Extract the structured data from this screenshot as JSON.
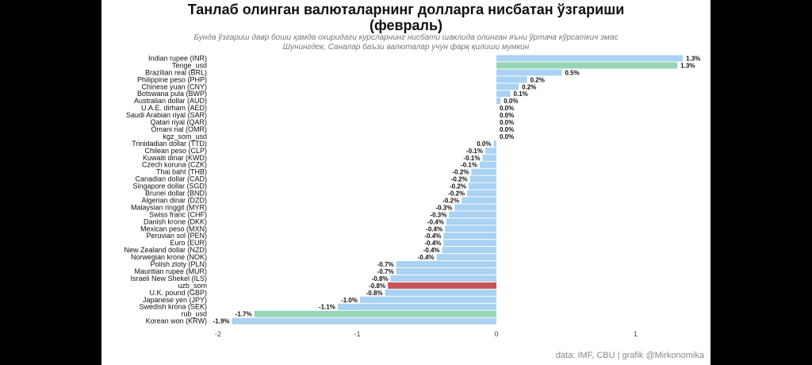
{
  "chart_data": {
    "type": "bar",
    "orientation": "horizontal",
    "title": "Танлаб олинган валюталарнинг долларга нисбатан ўзгариши\n(февраль)",
    "subtitle": "Бунда ўзгариш давр боши ҳамда охиридаги курсларнинг нисбати шаклида олинган яъни ўртача кўрсаткич эмас\nШунингдек, Саналар баъзи валюталар учун фарқ қилиши мумкин",
    "source": "data: IMF, CBU | grafik @Mirkonomika",
    "xlim": [
      -2,
      1.35
    ],
    "xticks": [
      -2,
      -1,
      0,
      1
    ],
    "grid": false,
    "colors": {
      "default": "#a9d2f3",
      "highlight_som": "#c8555a",
      "highlight_tenge_rub": "#96d6b4"
    },
    "bars": [
      {
        "label": "Indian rupee (INR)",
        "value": 1.34,
        "text": "1.3%",
        "color": "default"
      },
      {
        "label": "Tenge_usd",
        "value": 1.3,
        "text": "1.3%",
        "color": "highlight_tenge_rub"
      },
      {
        "label": "Brazilian real (BRL)",
        "value": 0.47,
        "text": "0.5%",
        "color": "default"
      },
      {
        "label": "Philippine peso (PHP)",
        "value": 0.22,
        "text": "0.2%",
        "color": "default"
      },
      {
        "label": "Chinese yuan (CNY)",
        "value": 0.16,
        "text": "0.2%",
        "color": "default"
      },
      {
        "label": "Botswana pula (BWP)",
        "value": 0.1,
        "text": "0.1%",
        "color": "default"
      },
      {
        "label": "Australian dollar (AUD)",
        "value": 0.03,
        "text": "0.0%",
        "color": "default"
      },
      {
        "label": "U.A.E. dirham (AED)",
        "value": 0.0,
        "text": "0.0%",
        "color": "default"
      },
      {
        "label": "Saudi Arabian riyal (SAR)",
        "value": 0.0,
        "text": "0.0%",
        "color": "default"
      },
      {
        "label": "Qatari riyal (QAR)",
        "value": 0.0,
        "text": "0.0%",
        "color": "default"
      },
      {
        "label": "Omani rial (OMR)",
        "value": 0.0,
        "text": "0.0%",
        "color": "default"
      },
      {
        "label": "kgz_som_usd",
        "value": 0.0,
        "text": "0.0%",
        "color": "default"
      },
      {
        "label": "Trinidadian dollar (TTD)",
        "value": -0.02,
        "text": "0.0%",
        "color": "default"
      },
      {
        "label": "Chilean peso (CLP)",
        "value": -0.08,
        "text": "-0.1%",
        "color": "default"
      },
      {
        "label": "Kuwaiti dinar (KWD)",
        "value": -0.1,
        "text": "-0.1%",
        "color": "default"
      },
      {
        "label": "Czech koruna (CZK)",
        "value": -0.12,
        "text": "-0.1%",
        "color": "default"
      },
      {
        "label": "Thai baht (THB)",
        "value": -0.18,
        "text": "-0.2%",
        "color": "default"
      },
      {
        "label": "Canadian dollar (CAD)",
        "value": -0.19,
        "text": "-0.2%",
        "color": "default"
      },
      {
        "label": "Singapore dollar (SGD)",
        "value": -0.2,
        "text": "-0.2%",
        "color": "default"
      },
      {
        "label": "Brunei dollar (BND)",
        "value": -0.21,
        "text": "-0.2%",
        "color": "default"
      },
      {
        "label": "Algerian dinar (DZD)",
        "value": -0.25,
        "text": "-0.2%",
        "color": "default"
      },
      {
        "label": "Malaysian ringgit (MYR)",
        "value": -0.3,
        "text": "-0.3%",
        "color": "default"
      },
      {
        "label": "Swiss franc (CHF)",
        "value": -0.34,
        "text": "-0.3%",
        "color": "default"
      },
      {
        "label": "Danish krone (DKK)",
        "value": -0.36,
        "text": "-0.4%",
        "color": "default"
      },
      {
        "label": "Mexican peso (MXN)",
        "value": -0.37,
        "text": "-0.4%",
        "color": "default"
      },
      {
        "label": "Peruvian sol (PEN)",
        "value": -0.38,
        "text": "-0.4%",
        "color": "default"
      },
      {
        "label": "Euro (EUR)",
        "value": -0.38,
        "text": "-0.4%",
        "color": "default"
      },
      {
        "label": "New Zealand dollar (NZD)",
        "value": -0.39,
        "text": "-0.4%",
        "color": "default"
      },
      {
        "label": "Norwegian krone (NOK)",
        "value": -0.43,
        "text": "-0.4%",
        "color": "default"
      },
      {
        "label": "Polish zloty (PLN)",
        "value": -0.72,
        "text": "-0.7%",
        "color": "default"
      },
      {
        "label": "Mauritian rupee (MUR)",
        "value": -0.72,
        "text": "-0.7%",
        "color": "default"
      },
      {
        "label": "Israeli New Shekel (ILS)",
        "value": -0.76,
        "text": "-0.8%",
        "color": "default"
      },
      {
        "label": "uzb_som",
        "value": -0.78,
        "text": "-0.8%",
        "color": "highlight_som"
      },
      {
        "label": "U.K. pound (GBP)",
        "value": -0.8,
        "text": "-0.8%",
        "color": "default"
      },
      {
        "label": "Japanese yen (JPY)",
        "value": -0.98,
        "text": "-1.0%",
        "color": "default"
      },
      {
        "label": "Swedish krona (SEK)",
        "value": -1.14,
        "text": "-1.1%",
        "color": "default"
      },
      {
        "label": "rub_usd",
        "value": -1.74,
        "text": "-1.7%",
        "color": "highlight_tenge_rub"
      },
      {
        "label": "Korean won (KRW)",
        "value": -1.9,
        "text": "-1.9%",
        "color": "default"
      }
    ]
  }
}
